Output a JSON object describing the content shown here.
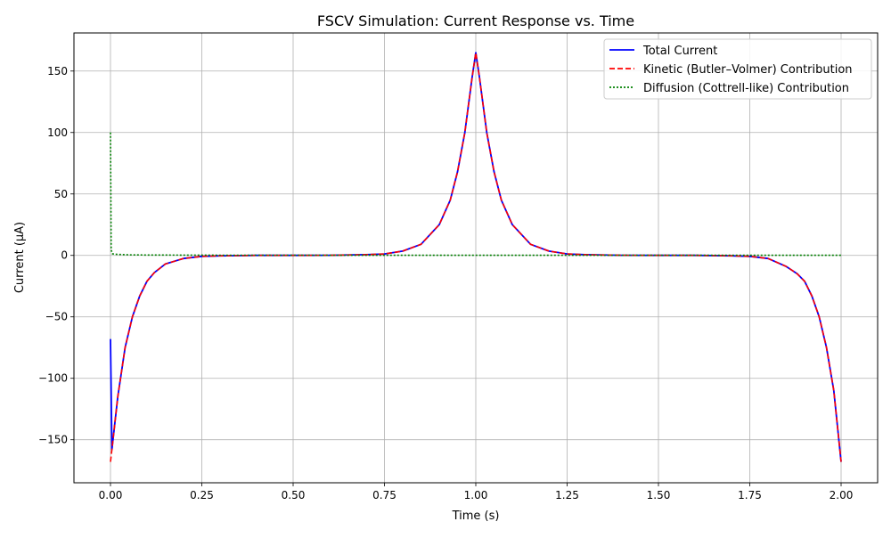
{
  "chart_data": {
    "type": "line",
    "title": "FSCV Simulation: Current Response vs. Time",
    "xlabel": "Time (s)",
    "ylabel": "Current (μA)",
    "xlim": [
      -0.1,
      2.1
    ],
    "ylim": [
      -185,
      181
    ],
    "grid": true,
    "legend_position": "top-right",
    "x_ticks": [
      {
        "value": 0.0,
        "label": "0.00"
      },
      {
        "value": 0.25,
        "label": "0.25"
      },
      {
        "value": 0.5,
        "label": "0.50"
      },
      {
        "value": 0.75,
        "label": "0.75"
      },
      {
        "value": 1.0,
        "label": "1.00"
      },
      {
        "value": 1.25,
        "label": "1.25"
      },
      {
        "value": 1.5,
        "label": "1.50"
      },
      {
        "value": 1.75,
        "label": "1.75"
      },
      {
        "value": 2.0,
        "label": "2.00"
      }
    ],
    "y_ticks": [
      {
        "value": -150,
        "label": "−150"
      },
      {
        "value": -100,
        "label": "−100"
      },
      {
        "value": -50,
        "label": "−50"
      },
      {
        "value": 0,
        "label": "0"
      },
      {
        "value": 50,
        "label": "50"
      },
      {
        "value": 100,
        "label": "100"
      },
      {
        "value": 150,
        "label": "150"
      }
    ],
    "series": [
      {
        "name": "Total Current",
        "color": "#0000ff",
        "style": "solid",
        "x": [
          0.0,
          0.004,
          0.02,
          0.04,
          0.06,
          0.08,
          0.1,
          0.12,
          0.15,
          0.2,
          0.25,
          0.3,
          0.4,
          0.5,
          0.6,
          0.7,
          0.75,
          0.8,
          0.85,
          0.9,
          0.93,
          0.95,
          0.97,
          0.99,
          1.0,
          1.01,
          1.03,
          1.05,
          1.07,
          1.1,
          1.15,
          1.2,
          1.25,
          1.3,
          1.4,
          1.5,
          1.6,
          1.7,
          1.75,
          1.8,
          1.85,
          1.88,
          1.9,
          1.92,
          1.94,
          1.96,
          1.98,
          2.0
        ],
        "y": [
          -68,
          -158,
          -115,
          -75,
          -50,
          -33,
          -21,
          -14,
          -7,
          -2.5,
          -0.8,
          -0.3,
          0,
          0,
          0.1,
          0.6,
          1.2,
          3.5,
          9,
          25,
          45,
          68,
          100,
          145,
          165,
          145,
          100,
          68,
          45,
          25,
          9,
          3.5,
          1.2,
          0.6,
          0.1,
          0,
          0,
          -0.3,
          -0.8,
          -2.5,
          -9,
          -15,
          -21,
          -33,
          -50,
          -75,
          -110,
          -168
        ]
      },
      {
        "name": "Kinetic (Butler–Volmer) Contribution",
        "color": "#ff0000",
        "style": "dashed",
        "x": [
          0.0,
          0.004,
          0.02,
          0.04,
          0.06,
          0.08,
          0.1,
          0.12,
          0.15,
          0.2,
          0.25,
          0.3,
          0.4,
          0.5,
          0.6,
          0.7,
          0.75,
          0.8,
          0.85,
          0.9,
          0.93,
          0.95,
          0.97,
          0.99,
          1.0,
          1.01,
          1.03,
          1.05,
          1.07,
          1.1,
          1.15,
          1.2,
          1.25,
          1.3,
          1.4,
          1.5,
          1.6,
          1.7,
          1.75,
          1.8,
          1.85,
          1.88,
          1.9,
          1.92,
          1.94,
          1.96,
          1.98,
          2.0
        ],
        "y": [
          -168,
          -158,
          -115,
          -75,
          -50,
          -33,
          -21,
          -14,
          -7,
          -2.5,
          -0.8,
          -0.3,
          0,
          0,
          0.1,
          0.6,
          1.2,
          3.5,
          9,
          25,
          45,
          68,
          100,
          145,
          165,
          145,
          100,
          68,
          45,
          25,
          9,
          3.5,
          1.2,
          0.6,
          0.1,
          0,
          0,
          -0.3,
          -0.8,
          -2.5,
          -9,
          -15,
          -21,
          -33,
          -50,
          -75,
          -110,
          -168
        ]
      },
      {
        "name": "Diffusion (Cottrell-like) Contribution",
        "color": "#008000",
        "style": "dotted",
        "x": [
          0.0,
          0.002,
          0.005,
          0.01,
          0.05,
          0.1,
          0.2,
          0.3,
          0.5,
          1.0,
          1.5,
          2.0
        ],
        "y": [
          100,
          4.5,
          1.4,
          1.0,
          0.45,
          0.32,
          0.22,
          0.18,
          0.14,
          0.1,
          0.08,
          0.07
        ]
      }
    ]
  }
}
